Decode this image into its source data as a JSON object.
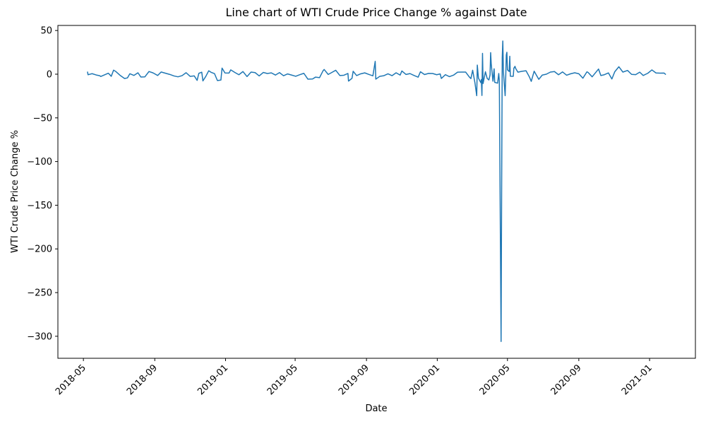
{
  "chart_data": {
    "type": "line",
    "title": "Line chart of WTI Crude Price Change % against Date",
    "xlabel": "Date",
    "ylabel": "WTI Crude Price Change %",
    "color": "#1f77b4",
    "xlim": [
      "2018-03-18",
      "2021-03-21"
    ],
    "ylim": [
      -325.2,
      55.8
    ],
    "xticks": [
      {
        "value": "2018-05-01",
        "label": "2018-05"
      },
      {
        "value": "2018-09-01",
        "label": "2018-09"
      },
      {
        "value": "2019-01-01",
        "label": "2019-01"
      },
      {
        "value": "2019-05-01",
        "label": "2019-05"
      },
      {
        "value": "2019-09-01",
        "label": "2019-09"
      },
      {
        "value": "2020-01-01",
        "label": "2020-01"
      },
      {
        "value": "2020-05-01",
        "label": "2020-05"
      },
      {
        "value": "2020-09-01",
        "label": "2020-09"
      },
      {
        "value": "2021-01-01",
        "label": "2021-01"
      }
    ],
    "yticks": [
      50,
      0,
      {
        "value": -50,
        "label": "−50"
      },
      {
        "value": -100,
        "label": "−100"
      },
      {
        "value": -150,
        "label": "−150"
      },
      {
        "value": -200,
        "label": "−200"
      },
      {
        "value": -250,
        "label": "−250"
      },
      {
        "value": -300,
        "label": "−300"
      }
    ],
    "x": [
      "2018-05-08",
      "2018-05-09",
      "2018-05-16",
      "2018-05-23",
      "2018-05-29",
      "2018-05-31",
      "2018-06-06",
      "2018-06-13",
      "2018-06-18",
      "2018-06-22",
      "2018-06-26",
      "2018-07-03",
      "2018-07-11",
      "2018-07-16",
      "2018-07-20",
      "2018-07-27",
      "2018-08-03",
      "2018-08-08",
      "2018-08-15",
      "2018-08-22",
      "2018-08-29",
      "2018-09-06",
      "2018-09-12",
      "2018-09-20",
      "2018-09-27",
      "2018-10-04",
      "2018-10-11",
      "2018-10-18",
      "2018-10-25",
      "2018-11-01",
      "2018-11-08",
      "2018-11-13",
      "2018-11-16",
      "2018-11-21",
      "2018-11-23",
      "2018-11-28",
      "2018-12-03",
      "2018-12-07",
      "2018-12-13",
      "2018-12-18",
      "2018-12-24",
      "2018-12-26",
      "2018-12-31",
      "2019-01-07",
      "2019-01-10",
      "2019-01-17",
      "2019-01-24",
      "2019-01-31",
      "2019-02-07",
      "2019-02-14",
      "2019-02-21",
      "2019-02-28",
      "2019-03-07",
      "2019-03-14",
      "2019-03-21",
      "2019-03-28",
      "2019-04-04",
      "2019-04-11",
      "2019-04-18",
      "2019-04-25",
      "2019-05-02",
      "2019-05-09",
      "2019-05-16",
      "2019-05-23",
      "2019-05-31",
      "2019-06-05",
      "2019-06-12",
      "2019-06-18",
      "2019-06-20",
      "2019-06-27",
      "2019-07-03",
      "2019-07-10",
      "2019-07-17",
      "2019-07-24",
      "2019-07-31",
      "2019-08-01",
      "2019-08-07",
      "2019-08-09",
      "2019-08-15",
      "2019-08-22",
      "2019-08-29",
      "2019-09-05",
      "2019-09-12",
      "2019-09-16",
      "2019-09-17",
      "2019-09-24",
      "2019-10-01",
      "2019-10-08",
      "2019-10-15",
      "2019-10-22",
      "2019-10-29",
      "2019-11-01",
      "2019-11-08",
      "2019-11-15",
      "2019-11-22",
      "2019-11-29",
      "2019-12-03",
      "2019-12-10",
      "2019-12-17",
      "2019-12-24",
      "2019-12-31",
      "2020-01-06",
      "2020-01-08",
      "2020-01-15",
      "2020-01-22",
      "2020-01-29",
      "2020-02-05",
      "2020-02-12",
      "2020-02-19",
      "2020-02-25",
      "2020-02-28",
      "2020-03-02",
      "2020-03-06",
      "2020-03-09",
      "2020-03-10",
      "2020-03-12",
      "2020-03-16",
      "2020-03-17",
      "2020-03-18",
      "2020-03-19",
      "2020-03-20",
      "2020-03-24",
      "2020-03-27",
      "2020-03-30",
      "2020-04-01",
      "2020-04-02",
      "2020-04-03",
      "2020-04-06",
      "2020-04-08",
      "2020-04-09",
      "2020-04-14",
      "2020-04-16",
      "2020-04-17",
      "2020-04-20",
      "2020-04-21",
      "2020-04-22",
      "2020-04-23",
      "2020-04-24",
      "2020-04-27",
      "2020-04-28",
      "2020-04-29",
      "2020-04-30",
      "2020-05-01",
      "2020-05-04",
      "2020-05-05",
      "2020-05-06",
      "2020-05-11",
      "2020-05-12",
      "2020-05-14",
      "2020-05-15",
      "2020-05-19",
      "2020-05-26",
      "2020-06-02",
      "2020-06-08",
      "2020-06-11",
      "2020-06-16",
      "2020-06-24",
      "2020-06-30",
      "2020-07-07",
      "2020-07-14",
      "2020-07-21",
      "2020-07-28",
      "2020-08-04",
      "2020-08-11",
      "2020-08-18",
      "2020-08-25",
      "2020-09-01",
      "2020-09-08",
      "2020-09-15",
      "2020-09-17",
      "2020-09-24",
      "2020-10-05",
      "2020-10-09",
      "2020-10-15",
      "2020-10-22",
      "2020-10-28",
      "2020-11-02",
      "2020-11-09",
      "2020-11-16",
      "2020-11-24",
      "2020-12-01",
      "2020-12-08",
      "2020-12-15",
      "2020-12-21",
      "2020-12-29",
      "2021-01-05",
      "2021-01-12",
      "2021-01-19",
      "2021-01-26",
      "2021-01-29"
    ],
    "values": [
      2.9,
      -0.6,
      0.6,
      -0.9,
      -1.7,
      -2.6,
      -0.9,
      1.1,
      -2.4,
      4.6,
      3.0,
      -1.2,
      -5.0,
      -4.2,
      0.5,
      -1.4,
      1.6,
      -3.2,
      -3.0,
      3.1,
      1.5,
      -1.5,
      2.5,
      1.0,
      -0.3,
      -2.0,
      -3.0,
      -1.7,
      1.7,
      -2.5,
      -1.9,
      -7.1,
      1.0,
      2.3,
      -7.7,
      -2.5,
      3.9,
      2.2,
      0.6,
      -7.3,
      -6.7,
      7.0,
      1.4,
      1.3,
      4.9,
      2.0,
      -0.6,
      3.0,
      -2.7,
      2.4,
      1.8,
      -2.0,
      2.0,
      0.8,
      1.5,
      -1.0,
      1.8,
      -1.8,
      0.3,
      -1.0,
      -2.4,
      -0.6,
      1.0,
      -5.7,
      -5.5,
      -3.4,
      -4.0,
      3.8,
      5.4,
      -0.3,
      1.9,
      4.5,
      -1.5,
      -1.2,
      0.8,
      -7.9,
      -4.7,
      3.3,
      -1.6,
      0.4,
      1.5,
      -0.3,
      -1.9,
      14.7,
      -5.7,
      -2.4,
      -1.7,
      0.4,
      -1.7,
      1.6,
      -1.0,
      3.7,
      -0.3,
      0.7,
      -1.5,
      -3.4,
      2.8,
      -0.4,
      0.9,
      0.8,
      -0.6,
      0.3,
      -4.9,
      -0.6,
      -2.8,
      -1.1,
      2.3,
      2.4,
      2.4,
      -3.0,
      -5.0,
      4.5,
      -10.1,
      -24.6,
      10.4,
      -4.5,
      -9.6,
      -6.1,
      -24.4,
      23.8,
      -10.6,
      2.8,
      -4.8,
      -6.6,
      -0.8,
      24.7,
      11.9,
      -8.0,
      6.2,
      -9.3,
      -10.3,
      0.8,
      -8.1,
      -306.0,
      -126.0,
      19.1,
      38.0,
      2.7,
      -24.6,
      -3.4,
      22.0,
      25.1,
      5.0,
      3.1,
      20.5,
      -2.3,
      -2.4,
      6.8,
      9.0,
      6.8,
      2.3,
      3.3,
      3.9,
      -3.4,
      -8.2,
      3.4,
      -5.9,
      -1.0,
      0.0,
      2.4,
      3.0,
      -0.6,
      2.6,
      -1.2,
      0.5,
      1.6,
      0.5,
      -4.6,
      2.7,
      2.0,
      -3.0,
      5.9,
      -1.5,
      -0.6,
      1.5,
      -5.5,
      2.8,
      8.5,
      2.4,
      4.3,
      -0.2,
      -0.5,
      2.3,
      -1.5,
      1.1,
      4.9,
      1.4,
      1.2,
      1.3,
      -0.5
    ]
  }
}
